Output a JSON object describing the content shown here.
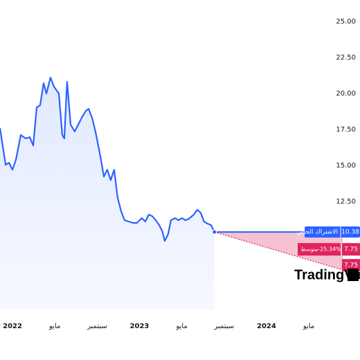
{
  "chart_data": {
    "type": "line",
    "x": [
      -1.18,
      -0.65,
      -0.33,
      0,
      0.33,
      0.78,
      1.24,
      1.63,
      1.96,
      2.29,
      2.61,
      2.94,
      3.2,
      3.59,
      3.92,
      4.38,
      4.71,
      4.9,
      5.16,
      5.49,
      5.88,
      6.21,
      6.54,
      6.93,
      7.19,
      7.52,
      7.84,
      8.3,
      8.63,
      8.95,
      9.28,
      9.61,
      9.93,
      10.26,
      10.59,
      10.98,
      11.37,
      11.76,
      12.22,
      12.55,
      12.88,
      13.2,
      13.53,
      13.86,
      14.18,
      14.38,
      14.71,
      14.97,
      15.36,
      15.69,
      16.01,
      16.34,
      16.67,
      17.12,
      17.45,
      17.78,
      18.1,
      18.43,
      18.76,
      19.08
    ],
    "series": [
      {
        "color": "#2962ff",
        "values": [
          17.6,
          15.05,
          15.19,
          14.71,
          15.43,
          17.12,
          16.88,
          16.97,
          16.39,
          19.04,
          19.18,
          20.72,
          20.0,
          21.11,
          20.48,
          20.0,
          17.12,
          16.88,
          20.82,
          17.84,
          17.36,
          17.84,
          18.32,
          18.8,
          18.94,
          18.32,
          17.36,
          15.67,
          14.23,
          14.71,
          13.99,
          14.71,
          12.79,
          11.83,
          11.2,
          11.11,
          11.01,
          11.01,
          11.35,
          11.11,
          11.59,
          11.49,
          11.2,
          10.87,
          10.38,
          9.76,
          10.24,
          11.2,
          11.35,
          11.2,
          11.35,
          11.2,
          11.3,
          11.59,
          11.92,
          11.73,
          11.11,
          10.96,
          10.87,
          10.38
        ]
      }
    ],
    "current": {
      "name": "الاشتراك الحالي",
      "value": 10.38,
      "color": "#2962ff"
    },
    "forecasts": [
      {
        "name": "متوسط",
        "change": "-25.34%",
        "value": 7.75,
        "color": "#e0245e"
      },
      {
        "value": 7.75,
        "color": "#e0245e"
      }
    ],
    "xlim": [
      -1.18,
      31.2
    ],
    "xticks": [
      {
        "value": 0,
        "label": "2022"
      },
      {
        "value": 4,
        "label": "مايو"
      },
      {
        "value": 8,
        "label": "سبتمبر"
      },
      {
        "value": 12,
        "label": "2023"
      },
      {
        "value": 16,
        "label": "مايو"
      },
      {
        "value": 20,
        "label": "سبتمبر"
      },
      {
        "value": 24,
        "label": "2024"
      },
      {
        "value": 28,
        "label": "مايو"
      }
    ],
    "ylim": [
      5,
      26.5
    ],
    "yticks": [
      {
        "value": 12.5,
        "label": "12.50"
      },
      {
        "value": 15,
        "label": "15.00"
      },
      {
        "value": 17.5,
        "label": "17.50"
      },
      {
        "value": 20,
        "label": "20.00"
      },
      {
        "value": 22.5,
        "label": "22.50"
      },
      {
        "value": 25,
        "label": "25.00"
      }
    ],
    "watermark": "TradingView"
  }
}
